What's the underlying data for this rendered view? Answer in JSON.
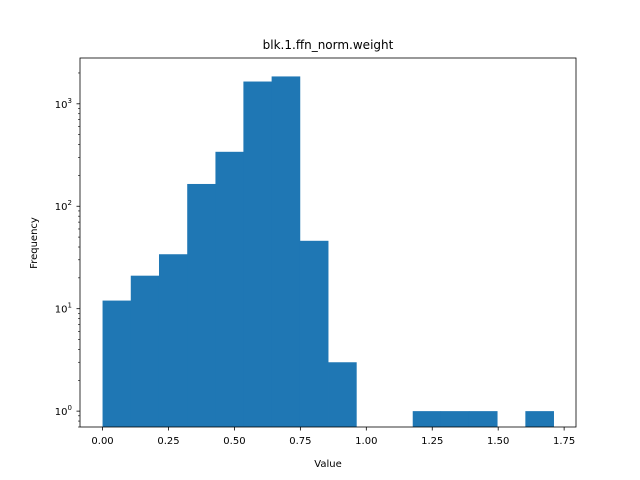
{
  "chart_data": {
    "type": "bar",
    "title": "blk.1.ffn_norm.weight",
    "xlabel": "Value",
    "ylabel": "Frequency",
    "yscale": "log",
    "bar_color": "#1f77b4",
    "xlim": [
      -0.0855,
      1.795
    ],
    "ylim": [
      0.7,
      2800
    ],
    "xticks": [
      {
        "value": 0.0,
        "label": "0.00"
      },
      {
        "value": 0.25,
        "label": "0.25"
      },
      {
        "value": 0.5,
        "label": "0.50"
      },
      {
        "value": 0.75,
        "label": "0.75"
      },
      {
        "value": 1.0,
        "label": "1.00"
      },
      {
        "value": 1.25,
        "label": "1.25"
      },
      {
        "value": 1.5,
        "label": "1.50"
      },
      {
        "value": 1.75,
        "label": "1.75"
      }
    ],
    "yticks": [
      {
        "value": 1,
        "base": "10",
        "exp": "0"
      },
      {
        "value": 10,
        "base": "10",
        "exp": "1"
      },
      {
        "value": 100,
        "base": "10",
        "exp": "2"
      },
      {
        "value": 1000,
        "base": "10",
        "exp": "3"
      }
    ],
    "bins": [
      {
        "x0": 0.0,
        "x1": 0.107,
        "count": 12
      },
      {
        "x0": 0.107,
        "x1": 0.214,
        "count": 21
      },
      {
        "x0": 0.214,
        "x1": 0.321,
        "count": 34
      },
      {
        "x0": 0.321,
        "x1": 0.428,
        "count": 165
      },
      {
        "x0": 0.428,
        "x1": 0.534,
        "count": 340
      },
      {
        "x0": 0.534,
        "x1": 0.641,
        "count": 1650
      },
      {
        "x0": 0.641,
        "x1": 0.748,
        "count": 1850
      },
      {
        "x0": 0.748,
        "x1": 0.855,
        "count": 46
      },
      {
        "x0": 0.855,
        "x1": 0.962,
        "count": 3
      },
      {
        "x0": 0.962,
        "x1": 1.069,
        "count": 0
      },
      {
        "x0": 1.069,
        "x1": 1.176,
        "count": 0
      },
      {
        "x0": 1.176,
        "x1": 1.282,
        "count": 1
      },
      {
        "x0": 1.282,
        "x1": 1.389,
        "count": 1
      },
      {
        "x0": 1.389,
        "x1": 1.496,
        "count": 1
      },
      {
        "x0": 1.496,
        "x1": 1.603,
        "count": 0
      },
      {
        "x0": 1.603,
        "x1": 1.71,
        "count": 1
      }
    ]
  }
}
